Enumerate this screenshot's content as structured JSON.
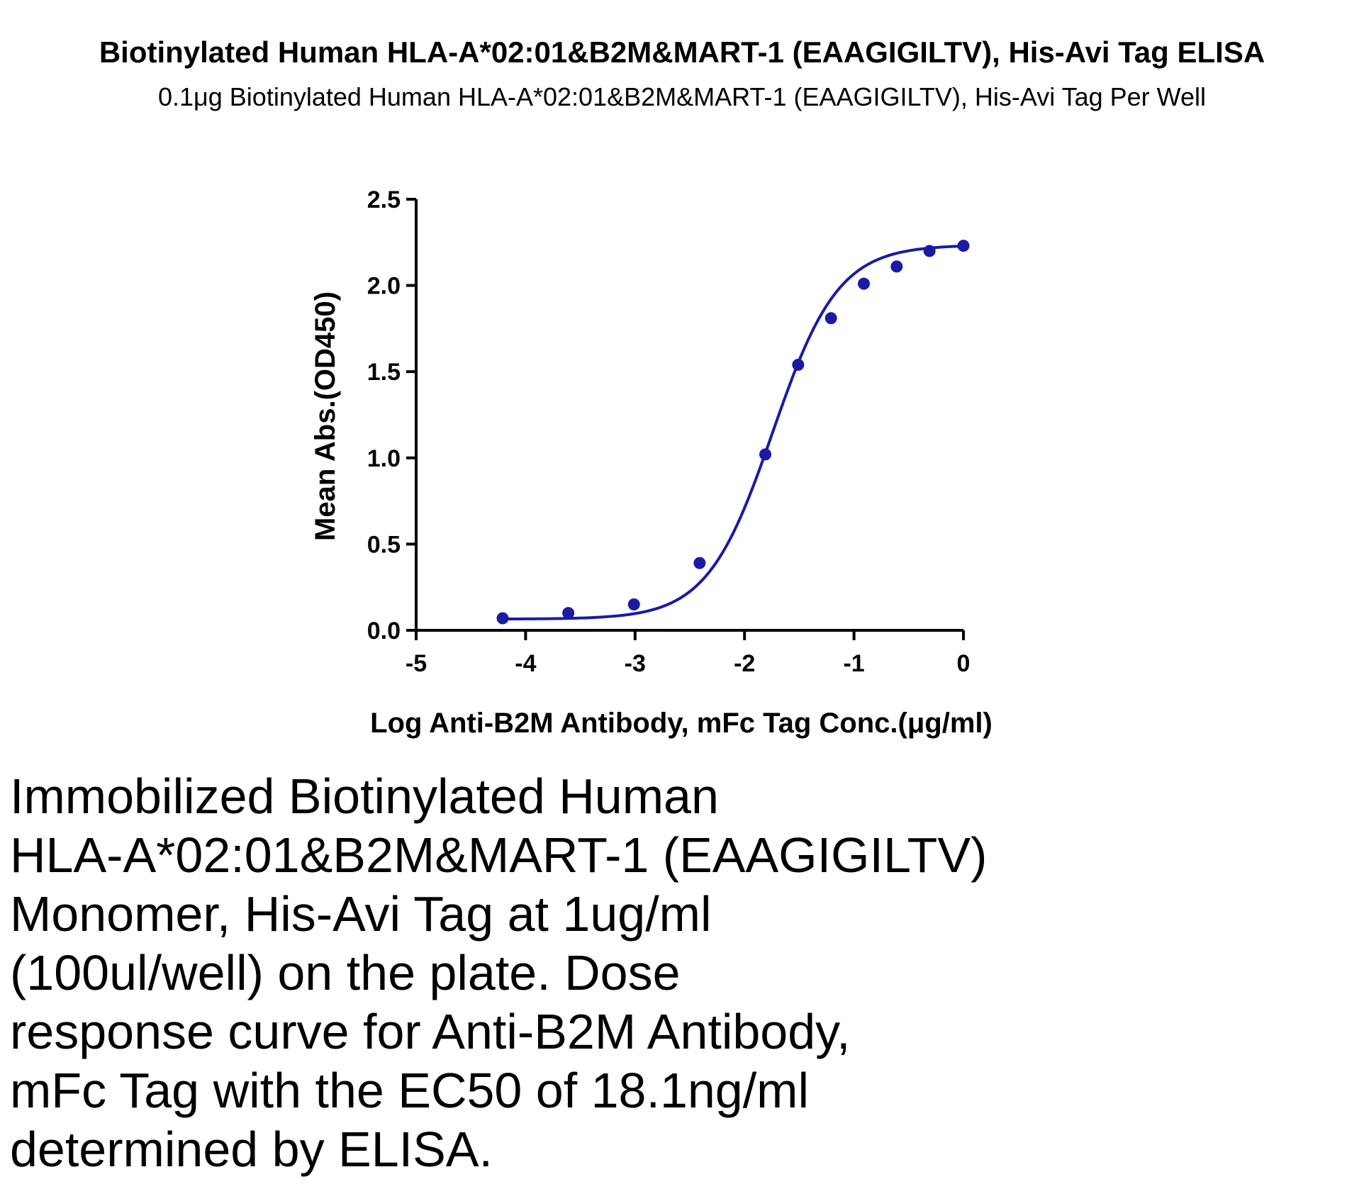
{
  "chart_data": {
    "type": "scatter",
    "title": "Biotinylated Human HLA-A*02:01&B2M&MART-1 (EAAGIGILTV), His-Avi Tag ELISA",
    "subtitle": "0.1μg Biotinylated Human HLA-A*02:01&B2M&MART-1 (EAAGIGILTV), His-Avi Tag Per Well",
    "xlabel": "Log Anti-B2M Antibody, mFc Tag Conc.(μg/ml)",
    "ylabel": "Mean Abs.(OD450)",
    "xlim": [
      -5,
      0
    ],
    "ylim": [
      0,
      2.5
    ],
    "x_ticks": [
      "-5",
      "-4",
      "-3",
      "-2",
      "-1",
      "0"
    ],
    "y_ticks": [
      "0.0",
      "0.5",
      "1.0",
      "1.5",
      "2.0",
      "2.5"
    ],
    "grid": false,
    "series": [
      {
        "x": [
          -4.21,
          -3.61,
          -3.01,
          -2.41,
          -1.81,
          -1.51,
          -1.21,
          -0.91,
          -0.61,
          -0.31,
          0
        ],
        "y": [
          0.07,
          0.1,
          0.15,
          0.39,
          1.02,
          1.54,
          1.81,
          2.01,
          2.11,
          2.2,
          2.23
        ],
        "color": "#1a1aa6",
        "fit": "four-parameter logistic"
      }
    ]
  },
  "caption": [
    "Immobilized Biotinylated Human",
    "HLA-A*02:01&B2M&MART-1 (EAAGIGILTV)",
    "Monomer, His-Avi Tag at 1ug/ml",
    "(100ul/well) on the plate. Dose",
    "response curve for Anti-B2M Antibody,",
    "mFc Tag with the EC50 of 18.1ng/ml",
    "determined by ELISA."
  ]
}
